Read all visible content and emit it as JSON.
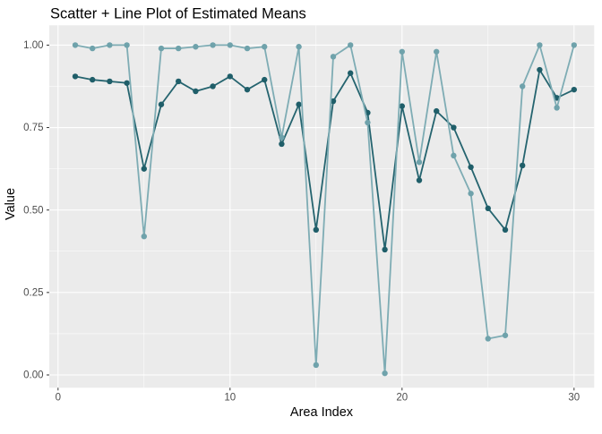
{
  "title": "Scatter + Line Plot of Estimated Means",
  "x_axis": {
    "title": "Area Index",
    "tick_labels": [
      "0",
      "10",
      "20",
      "30"
    ],
    "tick_values": [
      0,
      10,
      20,
      30
    ],
    "minor_tick_values": [
      5,
      15,
      25
    ]
  },
  "y_axis": {
    "title": "Value",
    "tick_labels": [
      "1.00",
      "0.75",
      "0.50",
      "0.25",
      "0.00"
    ],
    "tick_values": [
      1.0,
      0.75,
      0.5,
      0.25,
      0.0
    ],
    "minor_tick_values": [
      0.875,
      0.625,
      0.375,
      0.125
    ]
  },
  "colors": {
    "figure_background": "#ffffff",
    "panel_background": "#ebebeb",
    "gridline": "#ffffff",
    "tick_mark": "#333333",
    "tick_text": "#4d4d4d",
    "title_text": "#000000",
    "series_dark": "#25646f",
    "series_dark_point": "#1f5e69",
    "series_light": "#7eacb4",
    "series_light_point": "#6fa2ab"
  },
  "chart_data": {
    "type": "line",
    "subtype": "scatter+line, two series, no legend",
    "title": "Scatter + Line Plot of Estimated Means",
    "xlabel": "Area Index",
    "ylabel": "Value",
    "xlim": [
      -0.5,
      31.2
    ],
    "ylim": [
      -0.05,
      1.05
    ],
    "grid": "on",
    "legend": "none",
    "x": [
      1,
      2,
      3,
      4,
      5,
      6,
      7,
      8,
      9,
      10,
      11,
      12,
      13,
      14,
      15,
      16,
      17,
      18,
      19,
      20,
      21,
      22,
      23,
      24,
      25,
      26,
      27,
      28,
      29,
      30
    ],
    "series": [
      {
        "name": "series-dark-teal",
        "color": "#25646f",
        "point_color": "#1f5e69",
        "values": [
          0.905,
          0.895,
          0.89,
          0.885,
          0.625,
          0.82,
          0.89,
          0.86,
          0.875,
          0.905,
          0.865,
          0.895,
          0.7,
          0.82,
          0.44,
          0.83,
          0.915,
          0.795,
          0.38,
          0.815,
          0.59,
          0.8,
          0.75,
          0.63,
          0.505,
          0.44,
          0.635,
          0.925,
          0.84,
          0.865
        ]
      },
      {
        "name": "series-light-teal",
        "color": "#7eacb4",
        "point_color": "#6fa2ab",
        "values": [
          1.0,
          0.99,
          1.0,
          1.0,
          0.42,
          0.99,
          0.99,
          0.995,
          1.0,
          1.0,
          0.99,
          0.995,
          0.72,
          0.995,
          0.03,
          0.965,
          1.0,
          0.765,
          0.005,
          0.98,
          0.645,
          0.98,
          0.665,
          0.55,
          0.11,
          0.12,
          0.875,
          1.0,
          0.81,
          1.0
        ]
      }
    ]
  }
}
